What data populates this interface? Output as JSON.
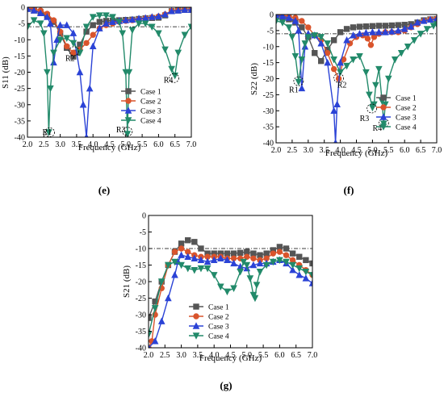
{
  "figure": {
    "captions": [
      "(e)",
      "(f)",
      "(g)"
    ]
  },
  "chart_data": [
    {
      "id": "e",
      "type": "line",
      "ylabel": "S11 (dB)",
      "xlabel": "Frequency (GHz)",
      "xlim": [
        2.0,
        7.0
      ],
      "ylim": [
        -40,
        0
      ],
      "xticks": [
        "2.0",
        "2.5",
        "3.0",
        "3.5",
        "4.0",
        "4.5",
        "5.0",
        "5.5",
        "6.0",
        "6.5",
        "7.0"
      ],
      "yticks": [
        "0",
        "-5",
        "-10",
        "-15",
        "-20",
        "-25",
        "-30",
        "-35",
        "-40"
      ],
      "reference_line": -6,
      "legend_position": "bottom-right",
      "annotations": [
        {
          "text": "R1",
          "x": 2.6,
          "y": -38.5,
          "circle_x": 2.68,
          "circle_y": -38.5
        },
        {
          "text": "R2",
          "x": 3.3,
          "y": -15.8,
          "circle_x": 3.42,
          "circle_y": -13.5
        },
        {
          "text": "R3",
          "x": 4.85,
          "y": -37.8,
          "circle_x": 5.05,
          "circle_y": -38.3
        },
        {
          "text": "R4",
          "x": 6.3,
          "y": -22.5,
          "circle_x": 6.47,
          "circle_y": -21.8
        }
      ],
      "series": [
        {
          "name": "Case 1",
          "color": "#555555",
          "marker": "square",
          "x": [
            2.0,
            2.2,
            2.4,
            2.6,
            2.8,
            3.0,
            3.2,
            3.4,
            3.5,
            3.6,
            3.8,
            4.0,
            4.2,
            4.4,
            4.6,
            4.8,
            5.0,
            5.2,
            5.4,
            5.6,
            5.8,
            6.0,
            6.2,
            6.4,
            6.6,
            6.8,
            7.0
          ],
          "y": [
            -0.5,
            -1,
            -1.5,
            -2.5,
            -4.5,
            -8,
            -12.5,
            -15.2,
            -14,
            -11.5,
            -7.5,
            -5.5,
            -4.5,
            -4.2,
            -4.1,
            -4,
            -3.9,
            -3.8,
            -3.6,
            -3.4,
            -3.3,
            -3.2,
            -2.5,
            -1.2,
            -1,
            -0.8,
            -0.8
          ]
        },
        {
          "name": "Case 2",
          "color": "#d9542c",
          "marker": "circle",
          "x": [
            2.0,
            2.2,
            2.4,
            2.6,
            2.8,
            3.0,
            3.2,
            3.4,
            3.6,
            3.8,
            4.0,
            4.2,
            4.4,
            4.6,
            4.8,
            5.0,
            5.2,
            5.4,
            5.6,
            5.8,
            6.0,
            6.2,
            6.4,
            6.6,
            6.8,
            7.0
          ],
          "y": [
            -0.3,
            -0.5,
            -1,
            -2,
            -4,
            -7.5,
            -12,
            -14,
            -13,
            -11,
            -8.5,
            -6.5,
            -5.5,
            -5,
            -4.5,
            -4.2,
            -4,
            -3.7,
            -3.4,
            -3.1,
            -2.8,
            -2.2,
            -1.1,
            -0.9,
            -0.8,
            -0.8
          ]
        },
        {
          "name": "Case 3",
          "color": "#2b43d6",
          "marker": "triangle-up",
          "x": [
            2.0,
            2.2,
            2.4,
            2.6,
            2.7,
            2.8,
            2.9,
            3.0,
            3.2,
            3.4,
            3.6,
            3.7,
            3.8,
            3.9,
            4.0,
            4.2,
            4.4,
            4.6,
            4.8,
            5.0,
            5.2,
            5.4,
            5.6,
            5.8,
            6.0,
            6.2,
            6.4,
            6.6,
            6.8,
            7.0
          ],
          "y": [
            -0.5,
            -1,
            -1.8,
            -3,
            -5,
            -17,
            -10,
            -5.5,
            -5.5,
            -8,
            -20,
            -30,
            -40,
            -25,
            -12,
            -6.5,
            -5,
            -4.5,
            -4.2,
            -4,
            -3.8,
            -3.5,
            -3.3,
            -3,
            -2.8,
            -2.2,
            -1.2,
            -1,
            -0.8,
            -0.8
          ]
        },
        {
          "name": "Case 4",
          "color": "#228a6a",
          "marker": "triangle-down",
          "x": [
            2.0,
            2.2,
            2.4,
            2.5,
            2.6,
            2.65,
            2.7,
            2.8,
            3.0,
            3.2,
            3.4,
            3.6,
            3.8,
            4.0,
            4.2,
            4.4,
            4.6,
            4.8,
            4.9,
            5.0,
            5.05,
            5.1,
            5.2,
            5.4,
            5.6,
            5.8,
            6.0,
            6.2,
            6.4,
            6.5,
            6.6,
            6.8,
            7.0
          ],
          "y": [
            -6,
            -4,
            -5,
            -8,
            -20,
            -38.5,
            -25,
            -14,
            -10,
            -9.5,
            -11,
            -14,
            -6,
            -3,
            -2.5,
            -2.5,
            -3,
            -4.5,
            -8,
            -20,
            -39,
            -20,
            -7,
            -5,
            -5,
            -6,
            -8,
            -13,
            -19,
            -21,
            -14,
            -8.5,
            -6
          ]
        }
      ]
    },
    {
      "id": "f",
      "type": "line",
      "ylabel": "S22 (dB)",
      "xlabel": "Frequency (GHz)",
      "xlim": [
        2.0,
        7.0
      ],
      "ylim": [
        -40,
        0
      ],
      "xticks": [
        "2.0",
        "2.5",
        "3.0",
        "3.5",
        "4.0",
        "4.5",
        "5.0",
        "5.5",
        "6.0",
        "6.5",
        "7.0"
      ],
      "yticks": [
        "0",
        "-5",
        "-10",
        "-15",
        "-20",
        "-25",
        "-30",
        "-35",
        "-40"
      ],
      "reference_line": -6,
      "legend_position": "bottom-right",
      "annotations": [
        {
          "text": "R1",
          "x": 2.55,
          "y": -23.5,
          "circle_x": 2.7,
          "circle_y": -20.8
        },
        {
          "text": "R2",
          "x": 4.05,
          "y": -22,
          "circle_x": 3.95,
          "circle_y": -19.8
        },
        {
          "text": "R3",
          "x": 4.75,
          "y": -32.5,
          "circle_x": 4.98,
          "circle_y": -29.3
        },
        {
          "text": "R4",
          "x": 5.15,
          "y": -35.5,
          "circle_x": 5.35,
          "circle_y": -33.8
        }
      ],
      "series": [
        {
          "name": "Case 1",
          "color": "#555555",
          "marker": "square",
          "x": [
            2.0,
            2.2,
            2.4,
            2.6,
            2.8,
            3.0,
            3.2,
            3.4,
            3.6,
            3.8,
            4.0,
            4.2,
            4.4,
            4.6,
            4.8,
            5.0,
            5.2,
            5.4,
            5.6,
            5.8,
            6.0,
            6.2,
            6.4,
            6.6,
            6.8,
            7.0
          ],
          "y": [
            -0.5,
            -0.8,
            -1.5,
            -2.5,
            -4,
            -7,
            -12,
            -14.5,
            -11,
            -8,
            -5.5,
            -4.5,
            -4,
            -3.8,
            -3.7,
            -3.6,
            -3.5,
            -3.5,
            -3.4,
            -3.3,
            -3.2,
            -3,
            -2.5,
            -1.8,
            -1.5,
            -1.4
          ]
        },
        {
          "name": "Case 2",
          "color": "#d9542c",
          "marker": "circle",
          "x": [
            2.0,
            2.2,
            2.4,
            2.6,
            2.8,
            3.0,
            3.2,
            3.4,
            3.6,
            3.8,
            3.95,
            4.1,
            4.3,
            4.5,
            4.7,
            4.85,
            4.95,
            5.05,
            5.2,
            5.4,
            5.6,
            5.8,
            6.0,
            6.2,
            6.4,
            6.6,
            6.8,
            7.0
          ],
          "y": [
            -0.3,
            -0.4,
            -0.6,
            -1,
            -2,
            -4,
            -6.5,
            -8,
            -12,
            -17,
            -20,
            -14,
            -9,
            -7,
            -6.5,
            -7.5,
            -9.5,
            -7,
            -6,
            -5.5,
            -5.5,
            -5.5,
            -5,
            -4,
            -3,
            -2,
            -1.5,
            -1.3
          ]
        },
        {
          "name": "Case 3",
          "color": "#2b43d6",
          "marker": "triangle-up",
          "x": [
            2.0,
            2.2,
            2.4,
            2.6,
            2.7,
            2.8,
            2.9,
            3.0,
            3.2,
            3.4,
            3.6,
            3.8,
            3.85,
            3.9,
            4.0,
            4.2,
            4.4,
            4.6,
            4.8,
            5.0,
            5.2,
            5.4,
            5.6,
            5.8,
            6.0,
            6.2,
            6.4,
            6.6,
            6.8,
            7.0
          ],
          "y": [
            -0.3,
            -0.5,
            -1,
            -2,
            -5,
            -23,
            -10,
            -6,
            -6.5,
            -9,
            -15,
            -30,
            -40,
            -28,
            -15,
            -8,
            -6.5,
            -6,
            -5.7,
            -5.5,
            -5.5,
            -5.5,
            -5.3,
            -5,
            -4.5,
            -3.8,
            -2.5,
            -2,
            -1.6,
            -1.4
          ]
        },
        {
          "name": "Case 4",
          "color": "#228a6a",
          "marker": "triangle-down",
          "x": [
            2.0,
            2.2,
            2.4,
            2.5,
            2.6,
            2.7,
            2.8,
            2.9,
            3.0,
            3.2,
            3.4,
            3.6,
            3.8,
            4.0,
            4.2,
            4.4,
            4.6,
            4.8,
            4.9,
            5.0,
            5.05,
            5.1,
            5.2,
            5.3,
            5.35,
            5.4,
            5.5,
            5.7,
            5.9,
            6.1,
            6.3,
            6.5,
            6.7,
            6.9,
            7.0
          ],
          "y": [
            -2,
            -2.5,
            -4,
            -7,
            -13,
            -21,
            -14,
            -9,
            -7,
            -6.5,
            -7,
            -9,
            -14,
            -18,
            -16,
            -14,
            -13,
            -18,
            -25,
            -29,
            -28,
            -22,
            -17,
            -27,
            -34,
            -28,
            -20,
            -14,
            -12,
            -10,
            -8,
            -6,
            -4.5,
            -3.5,
            -3
          ]
        }
      ]
    },
    {
      "id": "g",
      "type": "line",
      "ylabel": "S21 (dB)",
      "xlabel": "Frequency (GHz)",
      "xlim": [
        2.0,
        7.0
      ],
      "ylim": [
        -40,
        0
      ],
      "xticks": [
        "2.0",
        "2.5",
        "3.0",
        "3.5",
        "4.0",
        "4.5",
        "5.0",
        "5.5",
        "6.0",
        "6.5",
        "7.0"
      ],
      "yticks": [
        "0",
        "-5",
        "-10",
        "-15",
        "-20",
        "-25",
        "-30",
        "-35",
        "-40"
      ],
      "reference_line": -10,
      "legend_position": "bottom-left",
      "annotations": [],
      "series": [
        {
          "name": "Case 1",
          "color": "#555555",
          "marker": "square",
          "x": [
            2.0,
            2.2,
            2.4,
            2.6,
            2.8,
            3.0,
            3.2,
            3.4,
            3.6,
            3.8,
            4.0,
            4.2,
            4.4,
            4.6,
            4.8,
            5.0,
            5.2,
            5.4,
            5.6,
            5.8,
            6.0,
            6.2,
            6.4,
            6.6,
            6.8,
            7.0
          ],
          "y": [
            -31,
            -26,
            -20,
            -15,
            -11,
            -8.5,
            -7.5,
            -8,
            -10,
            -11.5,
            -11.5,
            -11.5,
            -11.5,
            -11.5,
            -11.3,
            -11,
            -11.5,
            -12,
            -11.5,
            -10.5,
            -9.5,
            -10,
            -11.5,
            -12.5,
            -13.5,
            -14.5
          ]
        },
        {
          "name": "Case 2",
          "color": "#d9542c",
          "marker": "circle",
          "x": [
            2.0,
            2.1,
            2.2,
            2.4,
            2.6,
            2.8,
            3.0,
            3.2,
            3.4,
            3.6,
            3.8,
            4.0,
            4.2,
            4.4,
            4.6,
            4.8,
            5.0,
            5.2,
            5.4,
            5.6,
            5.8,
            6.0,
            6.2,
            6.4,
            6.6,
            6.8,
            7.0
          ],
          "y": [
            -40,
            -38,
            -30,
            -22,
            -15,
            -11,
            -10,
            -11,
            -12,
            -12.5,
            -12.5,
            -12.5,
            -12.5,
            -13,
            -13,
            -13,
            -12.5,
            -13,
            -13.5,
            -13,
            -11.5,
            -11,
            -12,
            -13.5,
            -15,
            -16.5,
            -18
          ]
        },
        {
          "name": "Case 3",
          "color": "#2b43d6",
          "marker": "triangle-up",
          "x": [
            2.0,
            2.2,
            2.4,
            2.6,
            2.8,
            2.9,
            3.0,
            3.2,
            3.4,
            3.6,
            3.8,
            4.0,
            4.2,
            4.4,
            4.6,
            4.8,
            5.0,
            5.2,
            5.4,
            5.6,
            5.8,
            6.0,
            6.2,
            6.4,
            6.6,
            6.8,
            7.0
          ],
          "y": [
            -40,
            -38,
            -32,
            -25,
            -18,
            -14,
            -12,
            -12.5,
            -13,
            -13.5,
            -14,
            -13.5,
            -13,
            -13.5,
            -14.5,
            -15.5,
            -16,
            -15,
            -14.5,
            -14.5,
            -14,
            -13.5,
            -14.5,
            -16.5,
            -18,
            -19,
            -20.5
          ]
        },
        {
          "name": "Case 4",
          "color": "#228a6a",
          "marker": "triangle-down",
          "x": [
            2.0,
            2.2,
            2.4,
            2.6,
            2.8,
            3.0,
            3.2,
            3.4,
            3.6,
            3.8,
            4.0,
            4.2,
            4.4,
            4.6,
            4.8,
            4.9,
            5.0,
            5.1,
            5.2,
            5.25,
            5.3,
            5.4,
            5.6,
            5.8,
            6.0,
            6.2,
            6.4,
            6.6,
            6.8,
            7.0
          ],
          "y": [
            -36,
            -28,
            -20,
            -15,
            -14,
            -15,
            -16,
            -16.5,
            -16,
            -16,
            -18,
            -21.5,
            -23,
            -22,
            -17,
            -14,
            -15,
            -19,
            -24,
            -25,
            -21,
            -17,
            -15,
            -14,
            -13.5,
            -14,
            -15,
            -16,
            -17,
            -18
          ]
        }
      ]
    }
  ]
}
